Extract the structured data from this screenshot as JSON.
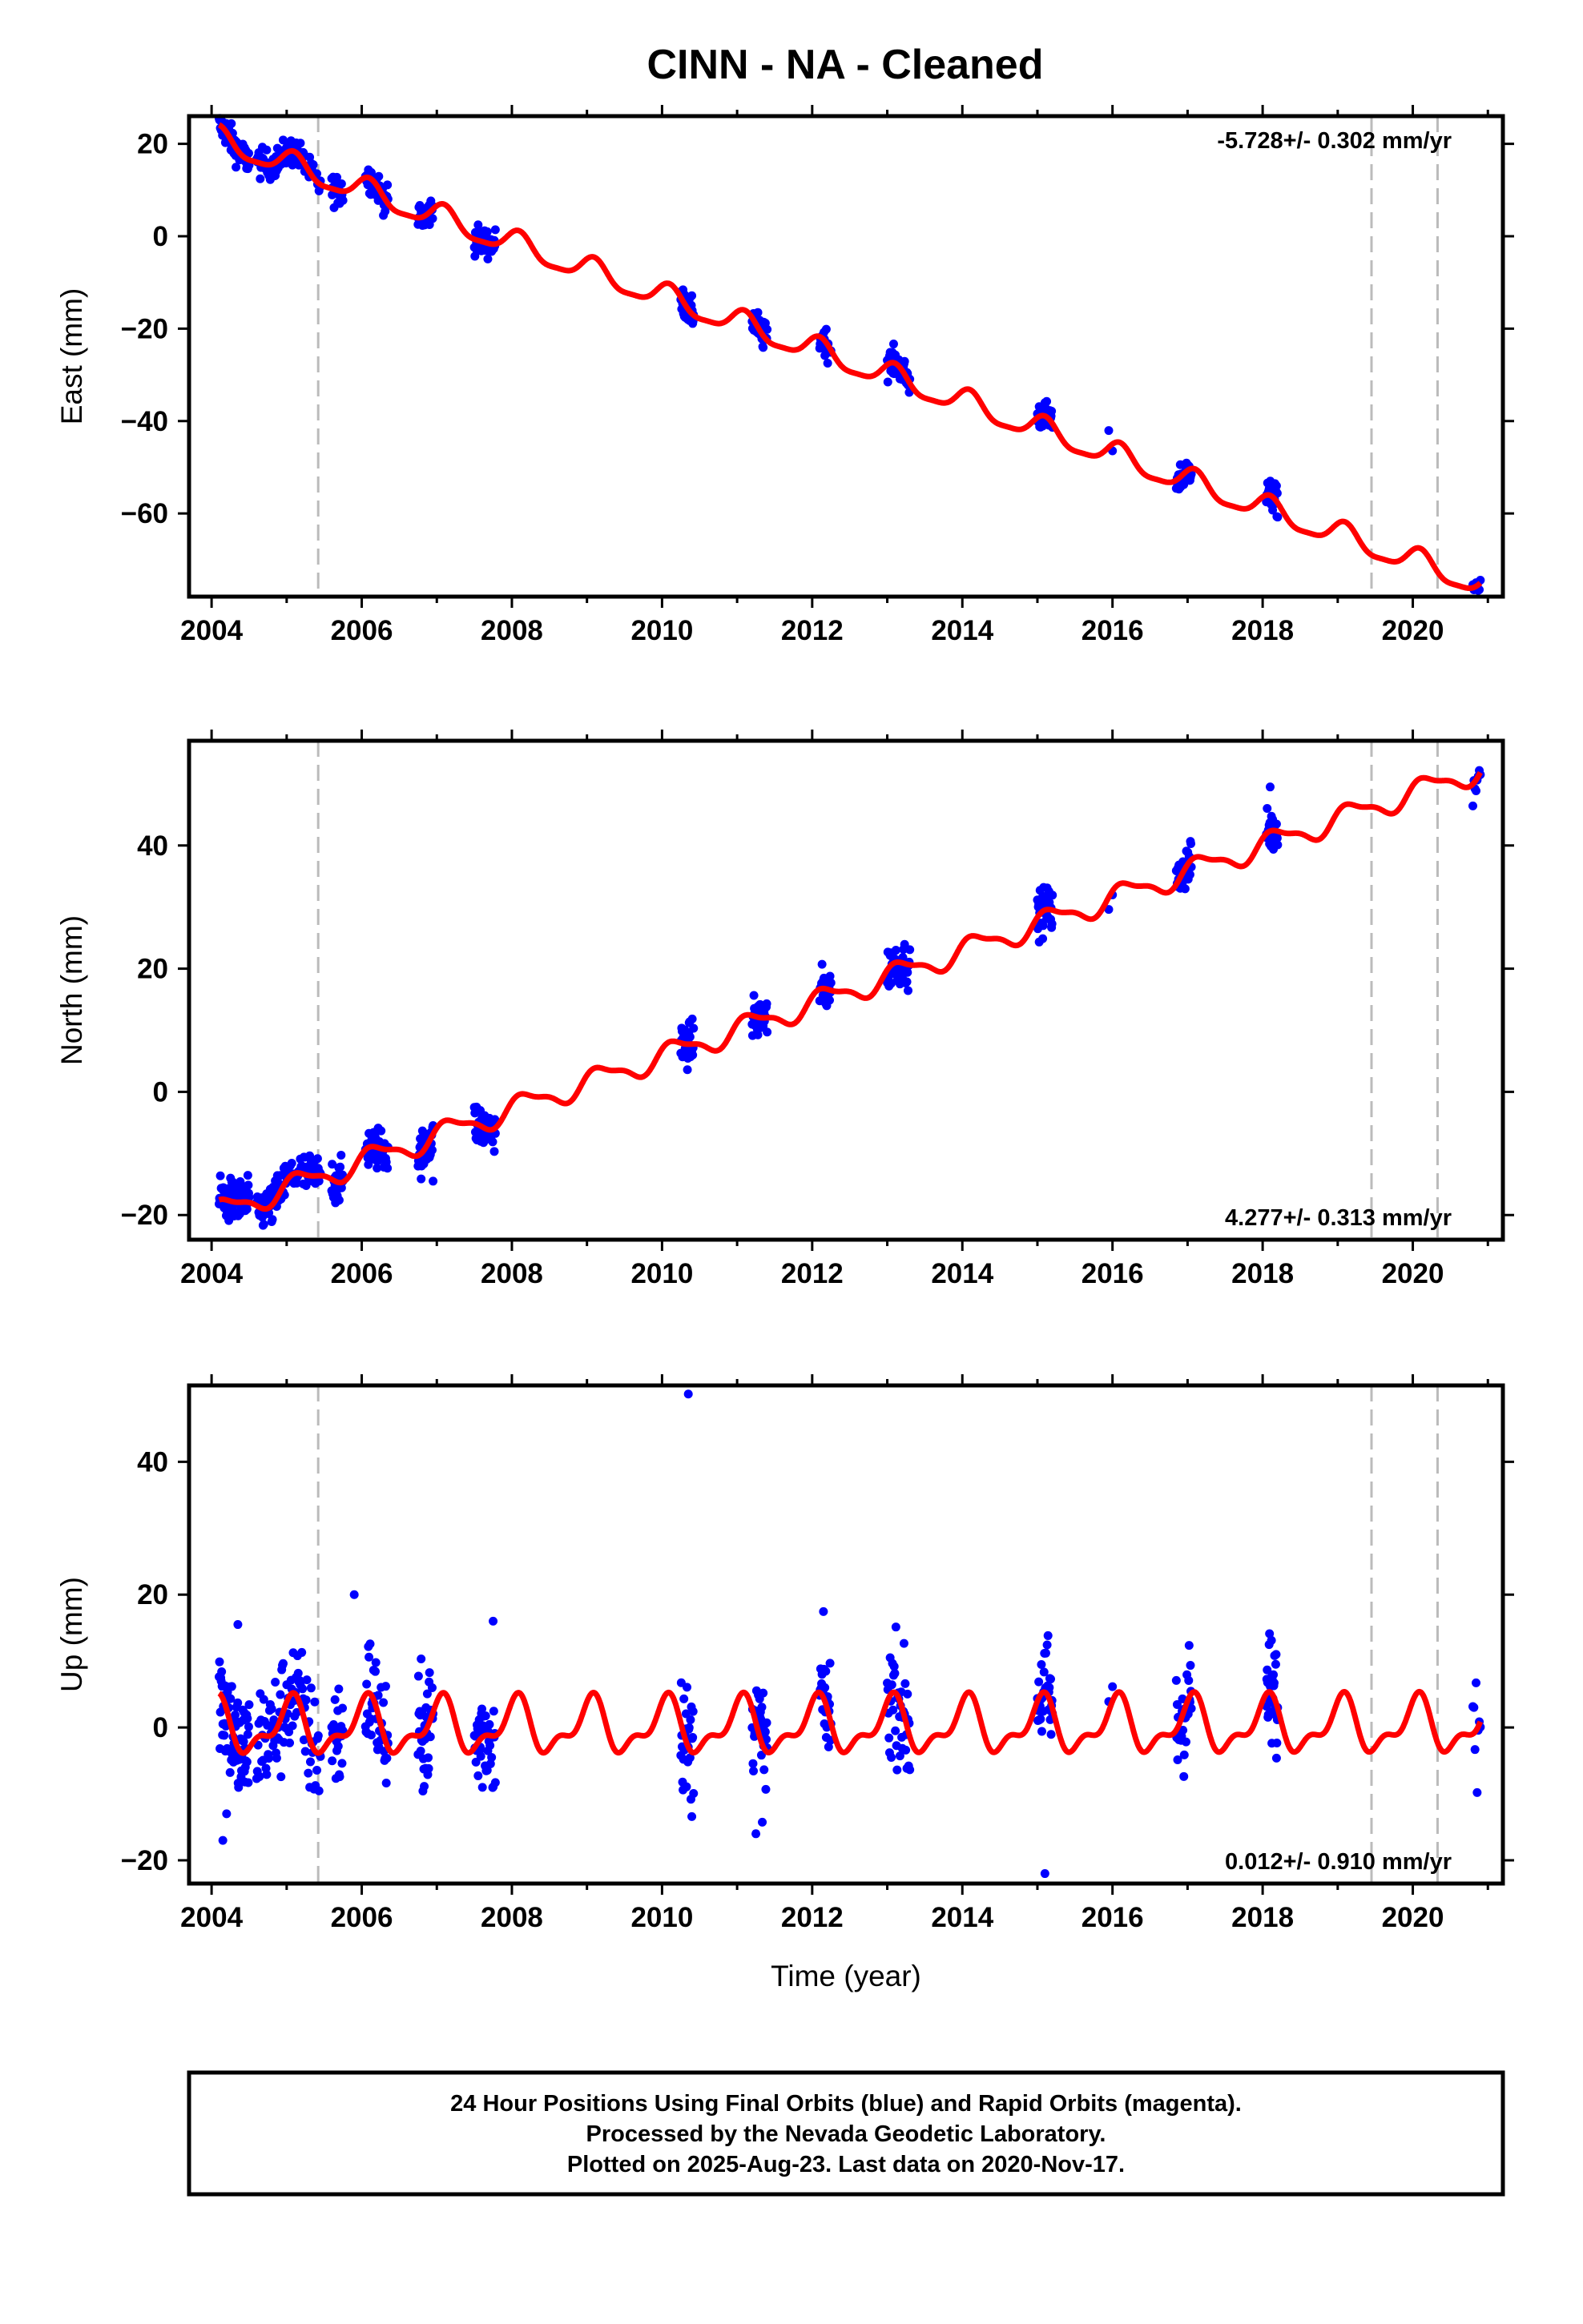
{
  "page": {
    "title": "CINN  - NA - Cleaned",
    "footer_lines": [
      "24 Hour Positions Using Final Orbits (blue) and Rapid Orbits (magenta).",
      "Processed by the Nevada Geodetic Laboratory.",
      "Plotted on 2025-Aug-23. Last data on 2020-Nov-17."
    ]
  },
  "colors": {
    "data_points": "#0000ff",
    "model_curve": "#ff0000",
    "event_lines": "#bbbbbb",
    "frame": "#000000"
  },
  "chart_data": [
    {
      "type": "scatter",
      "title": "",
      "xlabel": "",
      "ylabel": "East (mm)",
      "xlim": [
        2003.7,
        2021.2
      ],
      "ylim": [
        -78,
        26
      ],
      "xticks": [
        2004,
        2006,
        2008,
        2010,
        2012,
        2014,
        2016,
        2018,
        2020
      ],
      "yticks": [
        20,
        0,
        -20,
        -40,
        -60
      ],
      "ytick_labels": [
        "20",
        "0",
        "−20",
        "−40",
        "−60"
      ],
      "rate_label": "-5.728+/- 0.302 mm/yr",
      "rate_position": "top-right",
      "event_lines": [
        2005.42,
        2019.45,
        2020.33
      ],
      "model": {
        "y0": 20.8,
        "t0": 2004.1,
        "rate": -5.728,
        "amp1": 2.6,
        "phase1": 1.0,
        "amp2": 0.7,
        "phase2": 0.3
      },
      "series": [
        {
          "name": "Final Orbits",
          "segments": [
            [
              2004.1,
              2004.5,
              72
            ],
            [
              2004.6,
              2005.45,
              90
            ],
            [
              2005.6,
              2005.75,
              25
            ],
            [
              2006.05,
              2006.35,
              40
            ],
            [
              2006.75,
              2006.95,
              35
            ],
            [
              2007.5,
              2007.78,
              40
            ],
            [
              2010.25,
              2010.42,
              30
            ],
            [
              2011.2,
              2011.4,
              35
            ],
            [
              2012.1,
              2012.25,
              25
            ],
            [
              2013.0,
              2013.3,
              40
            ],
            [
              2015.0,
              2015.2,
              35
            ],
            [
              2015.95,
              2016.0,
              2
            ],
            [
              2016.85,
              2017.05,
              35
            ],
            [
              2018.05,
              2018.2,
              30
            ],
            [
              2020.8,
              2020.9,
              8
            ]
          ],
          "spread": 1.6,
          "outliers": []
        }
      ]
    },
    {
      "type": "scatter",
      "title": "",
      "xlabel": "",
      "ylabel": "North (mm)",
      "xlim": [
        2003.7,
        2021.2
      ],
      "ylim": [
        -24,
        57
      ],
      "xticks": [
        2004,
        2006,
        2008,
        2010,
        2012,
        2014,
        2016,
        2018,
        2020
      ],
      "yticks": [
        40,
        20,
        0,
        -20
      ],
      "ytick_labels": [
        "40",
        "20",
        "0",
        "−20"
      ],
      "rate_label": "4.277+/- 0.313 mm/yr",
      "rate_position": "bottom-right",
      "event_lines": [
        2005.42,
        2019.45,
        2020.33
      ],
      "model": {
        "y0": -19.5,
        "t0": 2004.1,
        "rate": 4.277,
        "amp1": 1.8,
        "phase1": 0.4,
        "amp2": 0.6,
        "phase2": 1.1
      },
      "series": [
        {
          "name": "Final Orbits",
          "segments": [
            [
              2004.1,
              2004.5,
              72
            ],
            [
              2004.6,
              2005.45,
              90
            ],
            [
              2005.6,
              2005.75,
              25
            ],
            [
              2006.05,
              2006.35,
              40
            ],
            [
              2006.75,
              2006.95,
              35
            ],
            [
              2007.5,
              2007.78,
              40
            ],
            [
              2010.25,
              2010.42,
              30
            ],
            [
              2011.2,
              2011.4,
              35
            ],
            [
              2012.1,
              2012.25,
              25
            ],
            [
              2013.0,
              2013.3,
              40
            ],
            [
              2015.0,
              2015.2,
              35
            ],
            [
              2015.95,
              2016.0,
              2
            ],
            [
              2016.85,
              2017.05,
              35
            ],
            [
              2018.05,
              2018.2,
              30
            ],
            [
              2020.8,
              2020.9,
              8
            ]
          ],
          "spread": 1.8,
          "outliers": [
            [
              2018.1,
              49.5
            ],
            [
              2006.95,
              -14.5
            ]
          ]
        }
      ]
    },
    {
      "type": "scatter",
      "title": "",
      "xlabel": "Time (year)",
      "ylabel": "Up (mm)",
      "xlim": [
        2003.7,
        2021.2
      ],
      "ylim": [
        -23.5,
        51.5
      ],
      "xticks": [
        2004,
        2006,
        2008,
        2010,
        2012,
        2014,
        2016,
        2018,
        2020
      ],
      "yticks": [
        40,
        20,
        0,
        -20
      ],
      "ytick_labels": [
        "40",
        "20",
        "0",
        "−20"
      ],
      "rate_label": "0.012+/- 0.910 mm/yr",
      "rate_position": "bottom-right",
      "event_lines": [
        2005.42,
        2019.45,
        2020.33
      ],
      "model": {
        "y0": 0.0,
        "t0": 2004.1,
        "rate": 0.012,
        "amp1": 3.6,
        "phase1": 1.3,
        "amp2": 1.8,
        "phase2": 0.2
      },
      "series": [
        {
          "name": "Final Orbits",
          "segments": [
            [
              2004.1,
              2004.5,
              72
            ],
            [
              2004.6,
              2005.45,
              90
            ],
            [
              2005.6,
              2005.75,
              25
            ],
            [
              2006.05,
              2006.35,
              40
            ],
            [
              2006.75,
              2006.95,
              35
            ],
            [
              2007.5,
              2007.78,
              40
            ],
            [
              2010.25,
              2010.42,
              30
            ],
            [
              2011.2,
              2011.4,
              35
            ],
            [
              2012.1,
              2012.25,
              25
            ],
            [
              2013.0,
              2013.3,
              40
            ],
            [
              2015.0,
              2015.2,
              35
            ],
            [
              2015.95,
              2016.0,
              2
            ],
            [
              2016.85,
              2017.05,
              35
            ],
            [
              2018.05,
              2018.2,
              30
            ],
            [
              2020.8,
              2020.9,
              8
            ]
          ],
          "spread": 4.5,
          "outliers": [
            [
              2010.35,
              50.2
            ],
            [
              2005.9,
              20.0
            ],
            [
              2004.15,
              -17.0
            ],
            [
              2004.2,
              -13.0
            ],
            [
              2015.1,
              -22.0
            ],
            [
              2011.25,
              -16.0
            ],
            [
              2004.35,
              15.5
            ],
            [
              2007.75,
              16.0
            ]
          ]
        }
      ]
    }
  ]
}
